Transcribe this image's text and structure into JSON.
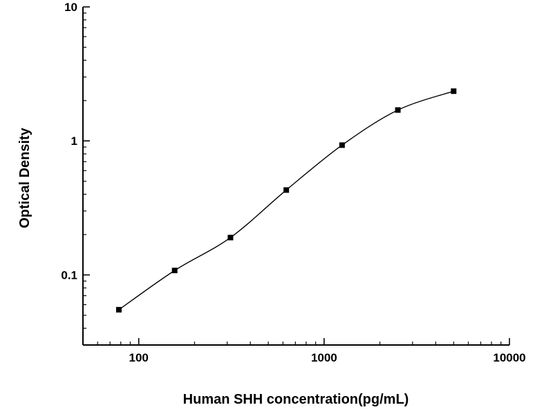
{
  "chart_data": {
    "type": "scatter",
    "title": "",
    "xlabel": "Human SHH concentration(pg/mL)",
    "ylabel": "Optical Density",
    "xscale": "log",
    "yscale": "log",
    "x": [
      78.125,
      156.25,
      312.5,
      625,
      1250,
      2500,
      5000
    ],
    "y": [
      0.055,
      0.108,
      0.19,
      0.43,
      0.93,
      1.7,
      2.35
    ],
    "xlim": [
      50,
      10000
    ],
    "ylim": [
      0.03,
      10
    ],
    "x_ticks": [
      100,
      1000,
      10000
    ],
    "y_ticks": [
      0.1,
      1,
      10
    ],
    "grid": "off",
    "legend": "none",
    "marker": "square",
    "marker_color": "#000000",
    "line_color": "#000000",
    "axis_color": "#000000"
  },
  "layout_hint": {
    "curve_style": "smooth 4PL-like fit line through points"
  }
}
